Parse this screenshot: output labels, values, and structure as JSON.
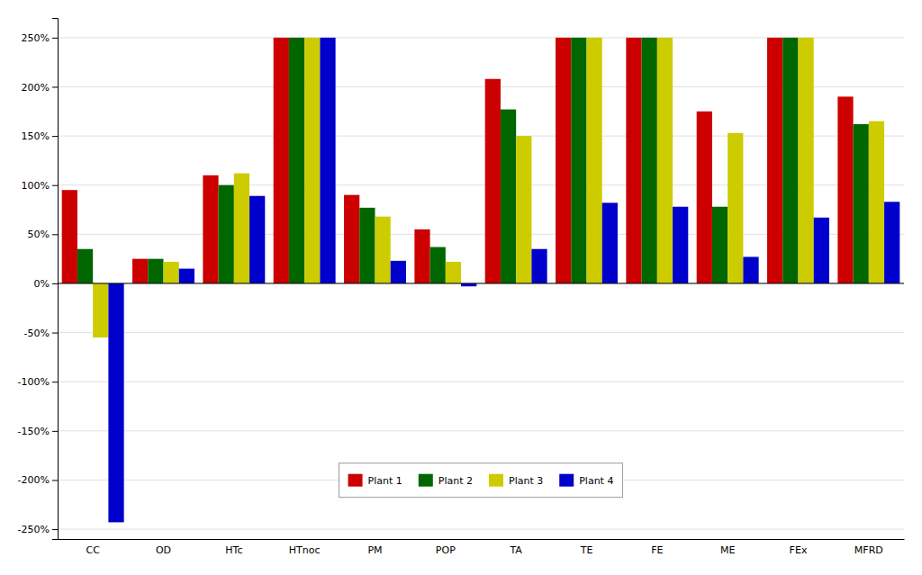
{
  "chart_data": {
    "type": "bar",
    "categories": [
      "CC",
      "OD",
      "HTc",
      "HTnoc",
      "PM",
      "POP",
      "TA",
      "TE",
      "FE",
      "ME",
      "FEx",
      "MFRD"
    ],
    "series": [
      {
        "name": "Plant 1",
        "color": "#CC0000",
        "values": [
          95,
          25,
          110,
          250,
          90,
          55,
          208,
          250,
          250,
          175,
          250,
          190
        ]
      },
      {
        "name": "Plant 2",
        "color": "#006600",
        "values": [
          35,
          25,
          100,
          250,
          77,
          37,
          177,
          250,
          250,
          78,
          250,
          162
        ]
      },
      {
        "name": "Plant 3",
        "color": "#CCCC00",
        "values": [
          -55,
          22,
          112,
          250,
          68,
          22,
          150,
          250,
          250,
          153,
          250,
          165
        ]
      },
      {
        "name": "Plant 4",
        "color": "#0000CC",
        "values": [
          -243,
          15,
          89,
          250,
          23,
          -3,
          35,
          82,
          78,
          27,
          67,
          83
        ]
      }
    ],
    "ylim": [
      -260,
      270
    ],
    "yticks": [
      {
        "value": -250,
        "label": "-250%"
      },
      {
        "value": -200,
        "label": "-200%"
      },
      {
        "value": -150,
        "label": "-150%"
      },
      {
        "value": -100,
        "label": "-100%"
      },
      {
        "value": -50,
        "label": "-50%"
      },
      {
        "value": 0,
        "label": "0%"
      },
      {
        "value": 50,
        "label": "50%"
      },
      {
        "value": 100,
        "label": "100%"
      },
      {
        "value": 150,
        "label": "150%"
      },
      {
        "value": 200,
        "label": "200%"
      },
      {
        "value": 250,
        "label": "250%"
      }
    ],
    "grid": true,
    "legend": "lower center"
  }
}
